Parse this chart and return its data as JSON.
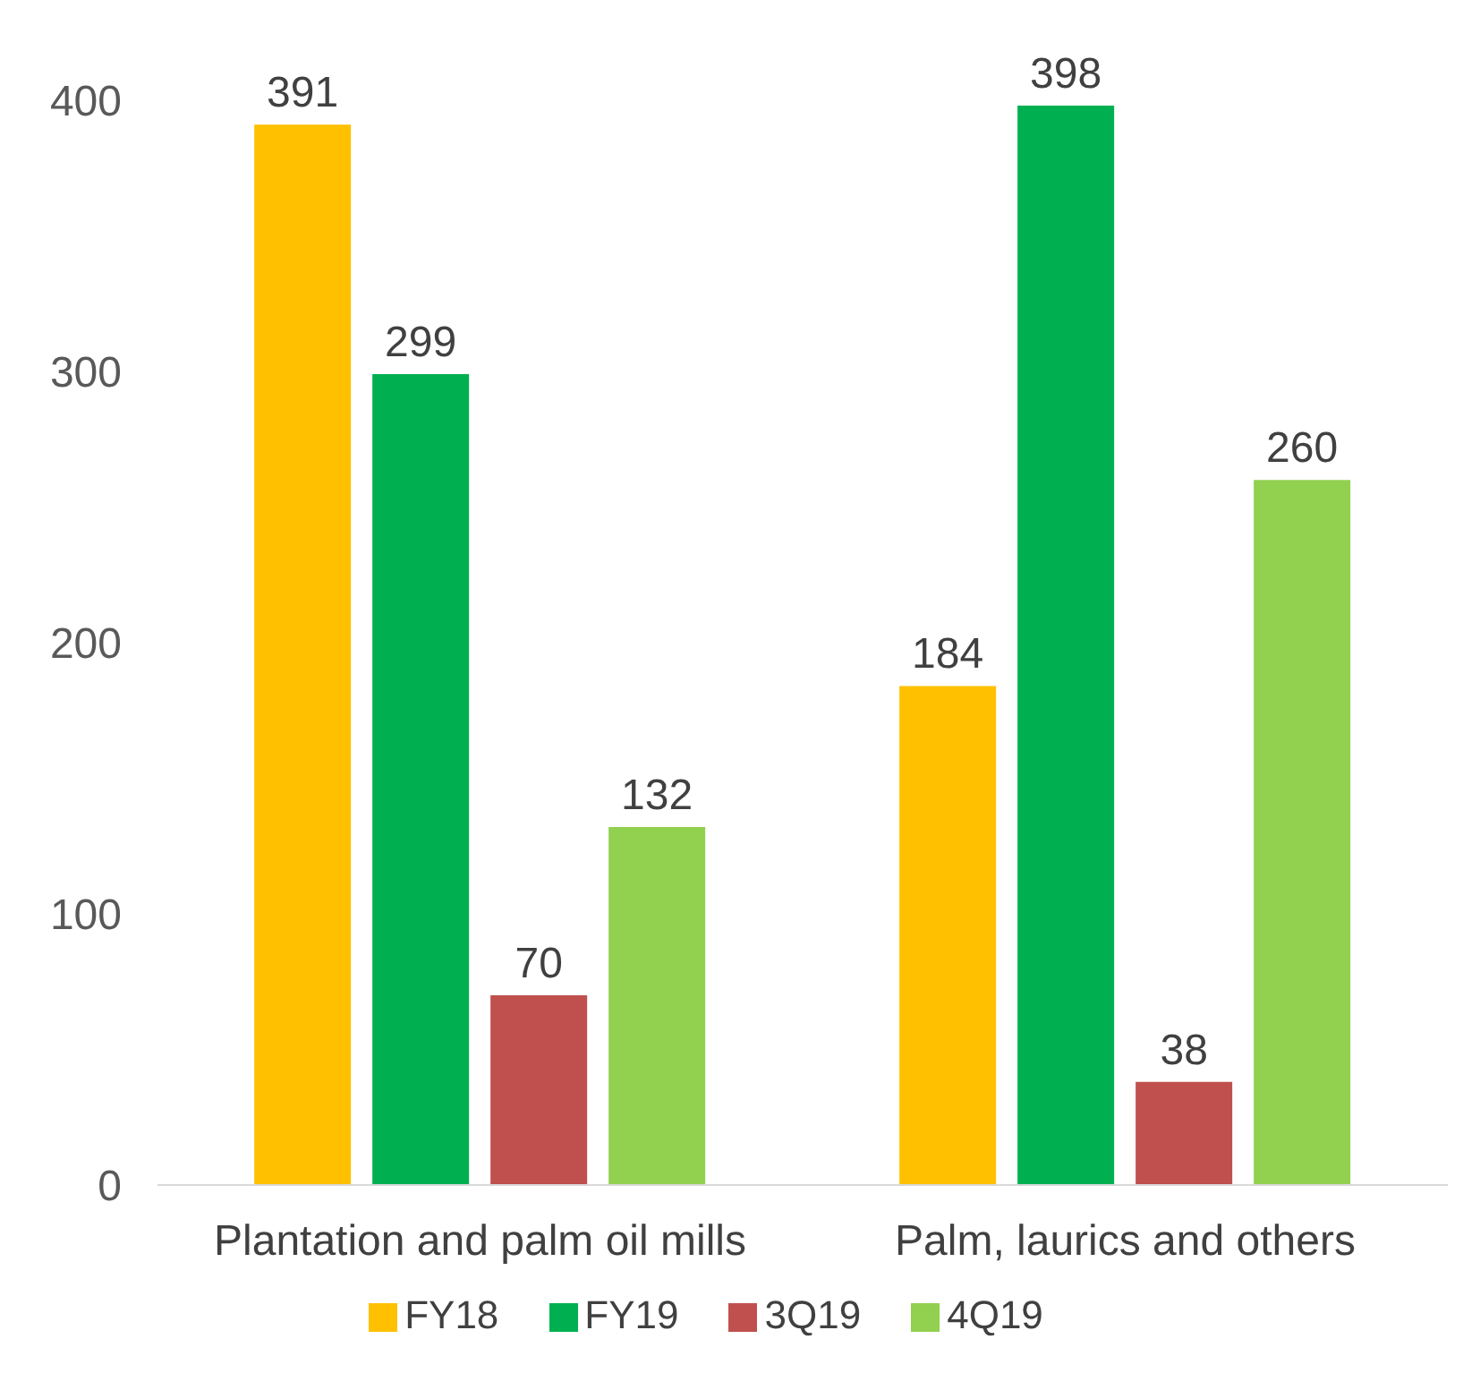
{
  "chart_data": {
    "type": "bar",
    "categories": [
      "Plantation and palm oil mills",
      "Palm, laurics and others"
    ],
    "series": [
      {
        "name": "FY18",
        "color": "#ffc000",
        "values": [
          391,
          184
        ]
      },
      {
        "name": "FY19",
        "color": "#00b050",
        "values": [
          299,
          398
        ]
      },
      {
        "name": "3Q19",
        "color": "#c0504d",
        "values": [
          70,
          38
        ]
      },
      {
        "name": "4Q19",
        "color": "#92d050",
        "values": [
          132,
          260
        ]
      }
    ],
    "ylim": [
      0,
      400
    ],
    "yticks": [
      0,
      100,
      200,
      300,
      400
    ],
    "grid": false,
    "legend": "bottom",
    "data_labels": true
  }
}
